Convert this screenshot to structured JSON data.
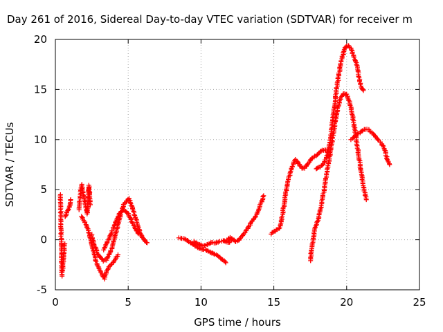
{
  "chart_data": {
    "type": "scatter",
    "title": "Day 261 of 2016, Sidereal Day-to-day VTEC variation (SDTVAR) for receiver m",
    "xlabel": "GPS time / hours",
    "ylabel": "SDTVAR / TECUs",
    "xlim": [
      0,
      25
    ],
    "ylim": [
      -5,
      20
    ],
    "xticks": [
      "0",
      "5",
      "10",
      "15",
      "20",
      "25"
    ],
    "yticks": [
      "-5",
      "0",
      "5",
      "10",
      "15",
      "20"
    ],
    "grid": true,
    "marker": "plus",
    "color": "#ff0000",
    "series": [
      {
        "segments": [
          [
            [
              0.35,
              4.5
            ],
            [
              0.45,
              -3.6
            ],
            [
              0.5,
              -3.0
            ],
            [
              0.55,
              -2.2
            ],
            [
              0.6,
              -1.2
            ],
            [
              0.65,
              -0.4
            ]
          ],
          [
            [
              0.7,
              2.3
            ],
            [
              0.8,
              2.8
            ],
            [
              0.9,
              3.1
            ],
            [
              1.0,
              3.5
            ],
            [
              1.05,
              4.0
            ]
          ],
          [
            [
              1.6,
              3.0
            ],
            [
              1.7,
              4.2
            ],
            [
              1.8,
              5.5
            ],
            [
              1.9,
              4.8
            ],
            [
              2.0,
              3.9
            ],
            [
              2.1,
              3.2
            ],
            [
              2.2,
              2.6
            ],
            [
              2.3,
              5.4
            ],
            [
              2.35,
              4.6
            ],
            [
              2.4,
              3.5
            ]
          ],
          [
            [
              1.8,
              2.3
            ],
            [
              2.0,
              1.8
            ],
            [
              2.2,
              1.2
            ],
            [
              2.4,
              0.2
            ],
            [
              2.6,
              -1.0
            ],
            [
              2.8,
              -2.2
            ],
            [
              3.0,
              -2.9
            ],
            [
              3.2,
              -3.4
            ],
            [
              3.35,
              -3.9
            ],
            [
              3.5,
              -3.2
            ],
            [
              3.7,
              -2.7
            ],
            [
              3.9,
              -2.4
            ],
            [
              4.1,
              -2.0
            ],
            [
              4.3,
              -1.5
            ]
          ],
          [
            [
              2.5,
              0.5
            ],
            [
              2.7,
              -0.6
            ],
            [
              2.9,
              -1.4
            ],
            [
              3.1,
              -1.8
            ],
            [
              3.3,
              -2.1
            ],
            [
              3.5,
              -2.0
            ],
            [
              3.7,
              -1.4
            ],
            [
              3.9,
              -0.8
            ],
            [
              4.1,
              0.3
            ],
            [
              4.3,
              1.5
            ],
            [
              4.5,
              2.7
            ],
            [
              4.7,
              3.5
            ],
            [
              4.9,
              3.9
            ],
            [
              5.05,
              4.1
            ],
            [
              5.2,
              3.6
            ],
            [
              5.4,
              2.7
            ],
            [
              5.6,
              1.7
            ],
            [
              5.8,
              0.8
            ],
            [
              6.0,
              0.2
            ],
            [
              6.2,
              -0.2
            ],
            [
              6.3,
              -0.3
            ]
          ],
          [
            [
              3.3,
              -1.0
            ],
            [
              3.5,
              -0.4
            ],
            [
              3.8,
              0.5
            ],
            [
              4.1,
              1.6
            ],
            [
              4.4,
              2.6
            ],
            [
              4.7,
              3.0
            ],
            [
              4.95,
              2.7
            ],
            [
              5.2,
              2.0
            ],
            [
              5.45,
              1.2
            ],
            [
              5.7,
              0.6
            ]
          ],
          [
            [
              8.5,
              0.2
            ],
            [
              8.8,
              0.1
            ],
            [
              9.1,
              -0.1
            ],
            [
              9.4,
              -0.4
            ],
            [
              9.7,
              -0.7
            ],
            [
              10.0,
              -0.9
            ],
            [
              10.3,
              -1.0
            ],
            [
              10.6,
              -1.2
            ],
            [
              10.9,
              -1.4
            ],
            [
              11.2,
              -1.7
            ],
            [
              11.5,
              -2.0
            ],
            [
              11.7,
              -2.3
            ]
          ],
          [
            [
              9.5,
              -0.2
            ],
            [
              9.8,
              -0.4
            ],
            [
              10.1,
              -0.6
            ],
            [
              10.4,
              -0.5
            ],
            [
              10.7,
              -0.3
            ],
            [
              11.0,
              -0.3
            ],
            [
              11.3,
              -0.2
            ],
            [
              11.6,
              -0.1
            ],
            [
              11.9,
              -0.3
            ],
            [
              12.1,
              0.0
            ]
          ],
          [
            [
              11.8,
              0.0
            ],
            [
              12.0,
              0.2
            ],
            [
              12.2,
              0.0
            ],
            [
              12.4,
              -0.2
            ],
            [
              12.6,
              0.0
            ],
            [
              12.9,
              0.5
            ],
            [
              13.2,
              1.1
            ],
            [
              13.5,
              1.8
            ],
            [
              13.8,
              2.5
            ],
            [
              14.0,
              3.2
            ],
            [
              14.2,
              3.9
            ],
            [
              14.3,
              4.4
            ]
          ],
          [
            [
              14.8,
              0.6
            ],
            [
              15.1,
              0.9
            ],
            [
              15.4,
              1.2
            ],
            [
              15.6,
              2.5
            ],
            [
              15.8,
              4.5
            ],
            [
              16.0,
              6.0
            ],
            [
              16.2,
              7.0
            ],
            [
              16.35,
              7.6
            ],
            [
              16.5,
              8.0
            ],
            [
              16.7,
              7.6
            ],
            [
              16.9,
              7.2
            ],
            [
              17.1,
              7.1
            ],
            [
              17.3,
              7.5
            ],
            [
              17.6,
              8.1
            ],
            [
              17.9,
              8.4
            ],
            [
              18.2,
              8.8
            ],
            [
              18.5,
              9.0
            ],
            [
              18.7,
              8.7
            ]
          ],
          [
            [
              17.5,
              -2.1
            ],
            [
              17.6,
              -1.0
            ],
            [
              17.7,
              0.0
            ],
            [
              17.8,
              1.0
            ],
            [
              18.0,
              1.8
            ],
            [
              18.2,
              3.0
            ],
            [
              18.4,
              4.6
            ],
            [
              18.6,
              6.3
            ],
            [
              18.8,
              8.0
            ],
            [
              19.0,
              9.8
            ],
            [
              19.2,
              11.7
            ],
            [
              19.4,
              13.2
            ],
            [
              19.6,
              14.2
            ],
            [
              19.8,
              14.6
            ],
            [
              20.0,
              14.5
            ],
            [
              20.2,
              13.8
            ],
            [
              20.4,
              12.4
            ],
            [
              20.6,
              10.6
            ],
            [
              20.8,
              8.7
            ],
            [
              21.0,
              6.7
            ],
            [
              21.2,
              5.0
            ],
            [
              21.35,
              4.0
            ]
          ],
          [
            [
              17.9,
              7.1
            ],
            [
              18.2,
              7.3
            ],
            [
              18.5,
              7.8
            ],
            [
              18.7,
              8.5
            ],
            [
              18.9,
              10.2
            ],
            [
              19.1,
              12.6
            ],
            [
              19.3,
              14.9
            ],
            [
              19.5,
              16.8
            ],
            [
              19.7,
              18.3
            ],
            [
              19.9,
              19.2
            ],
            [
              20.1,
              19.4
            ],
            [
              20.3,
              19.1
            ],
            [
              20.5,
              18.2
            ],
            [
              20.7,
              17.5
            ],
            [
              20.85,
              16.2
            ],
            [
              21.0,
              15.2
            ],
            [
              21.15,
              14.9
            ]
          ],
          [
            [
              20.3,
              10.0
            ],
            [
              20.6,
              10.4
            ],
            [
              20.9,
              10.7
            ],
            [
              21.2,
              11.0
            ],
            [
              21.5,
              11.0
            ],
            [
              21.8,
              10.6
            ],
            [
              22.1,
              10.1
            ],
            [
              22.4,
              9.6
            ],
            [
              22.6,
              9.0
            ],
            [
              22.8,
              8.0
            ],
            [
              22.95,
              7.5
            ]
          ]
        ]
      }
    ]
  }
}
